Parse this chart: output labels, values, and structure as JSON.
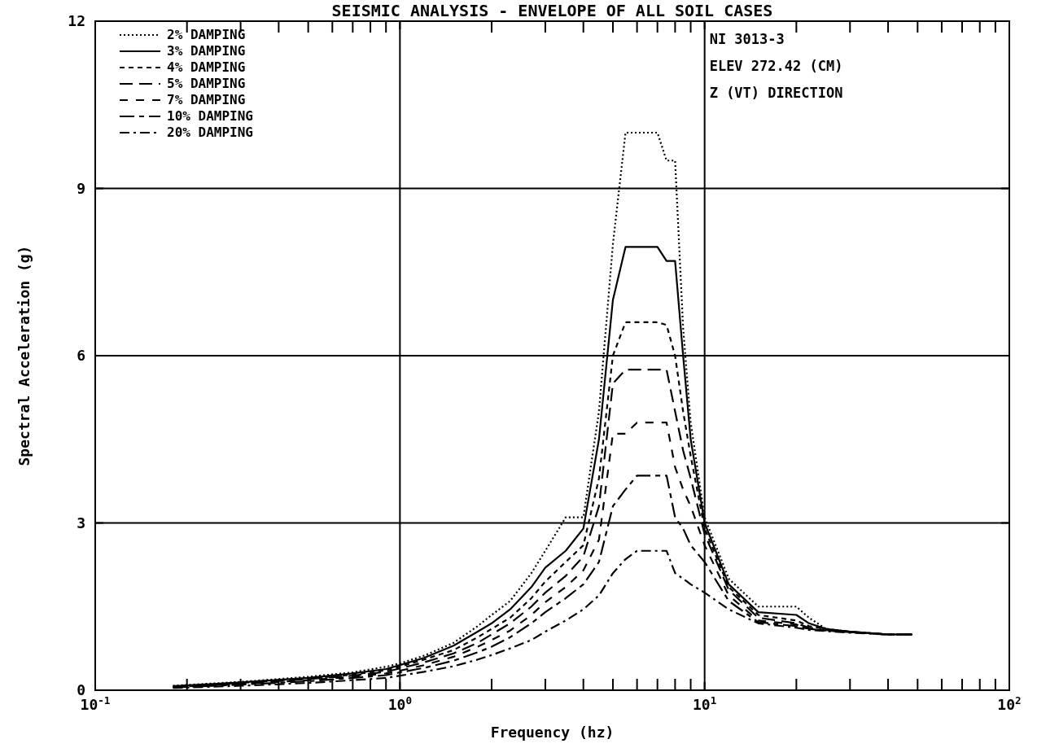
{
  "chart_data": {
    "type": "line",
    "title": "SEISMIC ANALYSIS -  ENVELOPE OF ALL SOIL CASES",
    "xlabel": "Frequency (hz)",
    "ylabel": "Spectral Acceleration (g)",
    "annotations": [
      "NI  3013-3",
      "ELEV 272.42 (CM)",
      "Z (VT) DIRECTION"
    ],
    "log": "x",
    "grid": true,
    "legend": "top left",
    "xlim": [
      0.1,
      100
    ],
    "ylim": [
      0,
      12
    ],
    "xticks": [
      {
        "value": 0.1,
        "label": "10$^{-1}$"
      },
      {
        "value": 0.2,
        "label": null
      },
      {
        "value": 0.3,
        "label": null
      },
      {
        "value": 0.4,
        "label": null
      },
      {
        "value": 0.5,
        "label": null
      },
      {
        "value": 0.6,
        "label": null
      },
      {
        "value": 0.7,
        "label": null
      },
      {
        "value": 0.8,
        "label": null
      },
      {
        "value": 0.9,
        "label": null
      },
      {
        "value": 1,
        "label": "10$^{0}$"
      },
      {
        "value": 2,
        "label": null
      },
      {
        "value": 3,
        "label": null
      },
      {
        "value": 4,
        "label": null
      },
      {
        "value": 5,
        "label": null
      },
      {
        "value": 6,
        "label": null
      },
      {
        "value": 7,
        "label": null
      },
      {
        "value": 8,
        "label": null
      },
      {
        "value": 9,
        "label": null
      },
      {
        "value": 10,
        "label": "10$^{1}$"
      },
      {
        "value": 20,
        "label": null
      },
      {
        "value": 30,
        "label": null
      },
      {
        "value": 40,
        "label": null
      },
      {
        "value": 50,
        "label": null
      },
      {
        "value": 60,
        "label": null
      },
      {
        "value": 70,
        "label": null
      },
      {
        "value": 80,
        "label": null
      },
      {
        "value": 90,
        "label": null
      },
      {
        "value": 100,
        "label": "10$^{2}$"
      }
    ],
    "yticks": [
      0,
      3,
      6,
      9,
      12
    ],
    "x": [
      0.18,
      0.3,
      0.5,
      0.7,
      0.9,
      1.0,
      1.2,
      1.5,
      1.8,
      2.0,
      2.3,
      2.7,
      3.0,
      3.5,
      4.0,
      4.5,
      5.0,
      5.5,
      6.0,
      7.0,
      7.5,
      8.0,
      8.5,
      9.0,
      10,
      12,
      15,
      20,
      22,
      25,
      30,
      40,
      48
    ],
    "series": [
      {
        "name": "2% DAMPING",
        "color": "#000000",
        "line_style": "dotted",
        "values": [
          0.08,
          0.15,
          0.24,
          0.32,
          0.42,
          0.48,
          0.62,
          0.85,
          1.15,
          1.35,
          1.6,
          2.1,
          2.5,
          3.1,
          3.1,
          5.0,
          8.0,
          10.0,
          10.0,
          10.0,
          9.5,
          9.5,
          6.5,
          4.8,
          3.1,
          2.0,
          1.5,
          1.5,
          1.3,
          1.1,
          1.05,
          1.0,
          1.0
        ]
      },
      {
        "name": "3% DAMPING",
        "color": "#000000",
        "line_style": "solid",
        "values": [
          0.07,
          0.14,
          0.22,
          0.3,
          0.38,
          0.45,
          0.58,
          0.8,
          1.05,
          1.2,
          1.45,
          1.85,
          2.2,
          2.5,
          2.9,
          4.5,
          7.0,
          7.95,
          7.95,
          7.95,
          7.7,
          7.7,
          6.0,
          4.5,
          3.0,
          1.9,
          1.4,
          1.35,
          1.2,
          1.1,
          1.05,
          1.0,
          1.0
        ]
      },
      {
        "name": "4% DAMPING",
        "color": "#000000",
        "line_style": "dashed",
        "values": [
          0.07,
          0.13,
          0.21,
          0.28,
          0.36,
          0.42,
          0.55,
          0.72,
          0.95,
          1.1,
          1.3,
          1.65,
          1.95,
          2.3,
          2.6,
          3.8,
          6.0,
          6.6,
          6.6,
          6.6,
          6.55,
          6.0,
          5.0,
          4.2,
          2.9,
          1.85,
          1.35,
          1.25,
          1.15,
          1.1,
          1.05,
          1.0,
          1.0
        ]
      },
      {
        "name": "5% DAMPING",
        "color": "#000000",
        "line_style": "longdash",
        "values": [
          0.06,
          0.12,
          0.2,
          0.26,
          0.33,
          0.39,
          0.5,
          0.66,
          0.85,
          1.0,
          1.2,
          1.5,
          1.75,
          2.05,
          2.4,
          3.3,
          5.5,
          5.75,
          5.75,
          5.75,
          5.75,
          5.0,
          4.3,
          3.8,
          2.8,
          1.8,
          1.3,
          1.2,
          1.12,
          1.08,
          1.05,
          1.0,
          1.0
        ]
      },
      {
        "name": "7% DAMPING",
        "color": "#000000",
        "line_style": "mediumdash",
        "values": [
          0.06,
          0.11,
          0.18,
          0.24,
          0.3,
          0.35,
          0.45,
          0.6,
          0.78,
          0.9,
          1.07,
          1.35,
          1.58,
          1.85,
          2.15,
          2.7,
          4.6,
          4.6,
          4.8,
          4.8,
          4.8,
          4.0,
          3.6,
          3.3,
          2.6,
          1.7,
          1.25,
          1.18,
          1.1,
          1.08,
          1.05,
          1.0,
          1.0
        ]
      },
      {
        "name": "10% DAMPING",
        "color": "#000000",
        "line_style": "longdashdot",
        "values": [
          0.05,
          0.1,
          0.16,
          0.22,
          0.27,
          0.32,
          0.4,
          0.53,
          0.68,
          0.78,
          0.95,
          1.2,
          1.4,
          1.65,
          1.9,
          2.3,
          3.3,
          3.6,
          3.85,
          3.85,
          3.85,
          3.1,
          2.9,
          2.6,
          2.3,
          1.6,
          1.22,
          1.15,
          1.1,
          1.07,
          1.04,
          1.0,
          1.0
        ]
      },
      {
        "name": "20% DAMPING",
        "color": "#000000",
        "line_style": "dashdot",
        "values": [
          0.04,
          0.08,
          0.13,
          0.18,
          0.22,
          0.26,
          0.33,
          0.43,
          0.55,
          0.63,
          0.75,
          0.9,
          1.05,
          1.25,
          1.45,
          1.7,
          2.1,
          2.35,
          2.5,
          2.5,
          2.5,
          2.1,
          2.0,
          1.9,
          1.75,
          1.45,
          1.2,
          1.12,
          1.08,
          1.06,
          1.03,
          1.0,
          1.0
        ]
      }
    ]
  }
}
